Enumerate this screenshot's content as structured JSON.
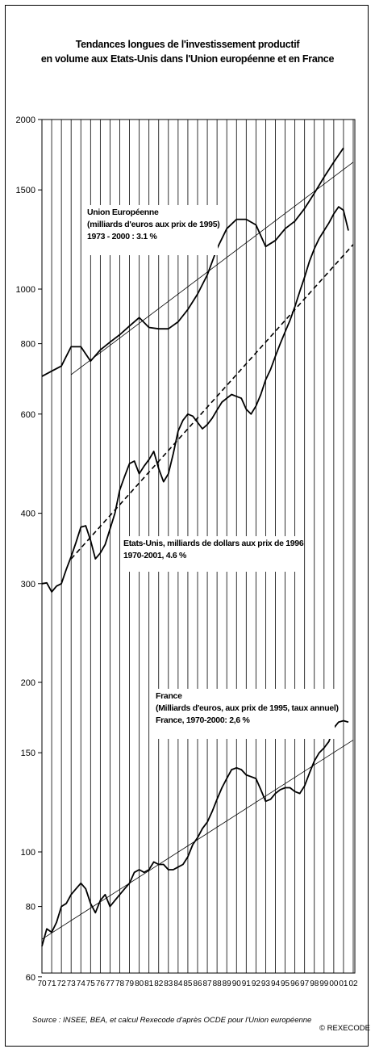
{
  "chart_data": {
    "type": "line",
    "title_line1": "Tendances longues de l'investissement productif",
    "title_line2": "en volume aux Etats-Unis dans l'Union européenne et en France",
    "yscale": "log",
    "grid": "vertical lines at each year",
    "x_tick_labels": [
      "70",
      "71",
      "72",
      "73",
      "74",
      "75",
      "76",
      "77",
      "78",
      "79",
      "80",
      "81",
      "82",
      "83",
      "84",
      "85",
      "86",
      "87",
      "88",
      "89",
      "90",
      "91",
      "92",
      "93",
      "94",
      "95",
      "96",
      "97",
      "98",
      "99",
      "00",
      "01",
      "02"
    ],
    "panels": [
      {
        "name": "top",
        "yticks": [
          "2000",
          "1500",
          "1000",
          "800",
          "600",
          "400",
          "300"
        ],
        "ylim": [
          280,
          2000
        ],
        "series": [
          {
            "name": "Union Européenne",
            "color": "#000000",
            "values": [
              [
                1970,
                700
              ],
              [
                1971,
                715
              ],
              [
                1972,
                730
              ],
              [
                1973,
                790
              ],
              [
                1974,
                790
              ],
              [
                1975,
                745
              ],
              [
                1976,
                780
              ],
              [
                1977,
                805
              ],
              [
                1978,
                830
              ],
              [
                1979,
                860
              ],
              [
                1980,
                890
              ],
              [
                1981,
                855
              ],
              [
                1982,
                850
              ],
              [
                1983,
                850
              ],
              [
                1984,
                875
              ],
              [
                1985,
                920
              ],
              [
                1986,
                980
              ],
              [
                1987,
                1060
              ],
              [
                1988,
                1180
              ],
              [
                1989,
                1280
              ],
              [
                1990,
                1330
              ],
              [
                1991,
                1330
              ],
              [
                1992,
                1300
              ],
              [
                1993,
                1190
              ],
              [
                1994,
                1220
              ],
              [
                1995,
                1280
              ],
              [
                1996,
                1320
              ],
              [
                1997,
                1390
              ],
              [
                1998,
                1480
              ],
              [
                1999,
                1580
              ],
              [
                2000,
                1680
              ],
              [
                2001,
                1780
              ]
            ]
          },
          {
            "name": "Tendance Union Européenne 1973-2000",
            "color": "#000000",
            "values": [
              [
                1973,
                705
              ],
              [
                2002,
                1680
              ]
            ]
          },
          {
            "name": "Etats-Unis",
            "color": "#000000",
            "values": [
              [
                1970,
                300
              ],
              [
                1970.5,
                301
              ],
              [
                1971,
                290
              ],
              [
                1971.5,
                297
              ],
              [
                1972,
                300
              ],
              [
                1972.5,
                318
              ],
              [
                1973,
                335
              ],
              [
                1973.5,
                355
              ],
              [
                1974,
                378
              ],
              [
                1974.5,
                380
              ],
              [
                1975,
                358
              ],
              [
                1975.5,
                332
              ],
              [
                1976,
                340
              ],
              [
                1976.5,
                352
              ],
              [
                1977,
                375
              ],
              [
                1977.5,
                400
              ],
              [
                1978,
                440
              ],
              [
                1978.5,
                465
              ],
              [
                1979,
                490
              ],
              [
                1979.5,
                495
              ],
              [
                1980,
                470
              ],
              [
                1980.5,
                485
              ],
              [
                1981,
                498
              ],
              [
                1981.5,
                515
              ],
              [
                1982,
                480
              ],
              [
                1982.5,
                455
              ],
              [
                1983,
                470
              ],
              [
                1983.5,
                510
              ],
              [
                1984,
                560
              ],
              [
                1984.5,
                585
              ],
              [
                1985,
                600
              ],
              [
                1985.5,
                595
              ],
              [
                1986,
                580
              ],
              [
                1986.5,
                565
              ],
              [
                1987,
                575
              ],
              [
                1987.5,
                590
              ],
              [
                1988,
                610
              ],
              [
                1988.5,
                630
              ],
              [
                1989,
                640
              ],
              [
                1989.5,
                650
              ],
              [
                1990,
                645
              ],
              [
                1990.5,
                640
              ],
              [
                1991,
                612
              ],
              [
                1991.5,
                600
              ],
              [
                1992,
                620
              ],
              [
                1992.5,
                650
              ],
              [
                1993,
                690
              ],
              [
                1993.5,
                720
              ],
              [
                1994,
                760
              ],
              [
                1994.5,
                800
              ],
              [
                1995,
                840
              ],
              [
                1995.5,
                880
              ],
              [
                1996,
                930
              ],
              [
                1996.5,
                990
              ],
              [
                1997,
                1050
              ],
              [
                1997.5,
                1120
              ],
              [
                1998,
                1180
              ],
              [
                1998.5,
                1230
              ],
              [
                1999,
                1270
              ],
              [
                1999.5,
                1310
              ],
              [
                2000,
                1360
              ],
              [
                2000.5,
                1400
              ],
              [
                2001,
                1380
              ],
              [
                2001.5,
                1270
              ]
            ]
          },
          {
            "name": "Tendance Etats-Unis 1970-2001",
            "color": "#000000",
            "dashed": true,
            "values": [
              [
                1973,
                332
              ],
              [
                2002,
                1200
              ]
            ]
          }
        ]
      },
      {
        "name": "bottom",
        "yticks": [
          "200",
          "150",
          "100",
          "80",
          "60"
        ],
        "ylim": [
          60,
          200
        ],
        "series": [
          {
            "name": "France",
            "color": "#000000",
            "values": [
              [
                1970,
                68
              ],
              [
                1970.5,
                73
              ],
              [
                1971,
                72
              ],
              [
                1971.5,
                75
              ],
              [
                1972,
                80
              ],
              [
                1972.5,
                81
              ],
              [
                1973,
                84
              ],
              [
                1973.5,
                86
              ],
              [
                1974,
                88
              ],
              [
                1974.5,
                86
              ],
              [
                1975,
                81
              ],
              [
                1975.5,
                78
              ],
              [
                1976,
                82
              ],
              [
                1976.5,
                84
              ],
              [
                1977,
                80
              ],
              [
                1977.5,
                82
              ],
              [
                1978,
                84
              ],
              [
                1978.5,
                86
              ],
              [
                1979,
                88
              ],
              [
                1979.5,
                92
              ],
              [
                1980,
                93
              ],
              [
                1980.5,
                92
              ],
              [
                1981,
                93
              ],
              [
                1981.5,
                96
              ],
              [
                1982,
                95
              ],
              [
                1982.5,
                95
              ],
              [
                1983,
                93
              ],
              [
                1983.5,
                93
              ],
              [
                1984,
                94
              ],
              [
                1984.5,
                95
              ],
              [
                1985,
                98
              ],
              [
                1985.5,
                103
              ],
              [
                1986,
                106
              ],
              [
                1986.5,
                110
              ],
              [
                1987,
                113
              ],
              [
                1987.5,
                118
              ],
              [
                1988,
                124
              ],
              [
                1988.5,
                130
              ],
              [
                1989,
                135
              ],
              [
                1989.5,
                140
              ],
              [
                1990,
                141
              ],
              [
                1990.5,
                140
              ],
              [
                1991,
                137
              ],
              [
                1991.5,
                136
              ],
              [
                1992,
                135
              ],
              [
                1992.5,
                129
              ],
              [
                1993,
                123
              ],
              [
                1993.5,
                124
              ],
              [
                1994,
                127
              ],
              [
                1994.5,
                129
              ],
              [
                1995,
                130
              ],
              [
                1995.5,
                130
              ],
              [
                1996,
                128
              ],
              [
                1996.5,
                127
              ],
              [
                1997,
                131
              ],
              [
                1997.5,
                138
              ],
              [
                1998,
                145
              ],
              [
                1998.5,
                150
              ],
              [
                1999,
                153
              ],
              [
                1999.5,
                157
              ],
              [
                2000,
                166
              ],
              [
                2000.5,
                170
              ],
              [
                2001,
                171
              ],
              [
                2001.5,
                170
              ]
            ]
          },
          {
            "name": "Tendance France 1970-2000",
            "color": "#000000",
            "values": [
              [
                1970,
                70
              ],
              [
                2002,
                158
              ]
            ]
          }
        ]
      }
    ],
    "annotations": {
      "ue": [
        "Union Européenne",
        "(milliards d'euros aux prix de 1995)",
        "1973 - 2000 : 3.1 %"
      ],
      "us": [
        "Etats-Unis, milliards de dollars aux prix de 1996",
        "1970-2001, 4.6 %"
      ],
      "fr": [
        "France",
        "(Milliards d'euros, aux prix de 1995, taux annuel)",
        "France, 1970-2000: 2,6 %"
      ]
    }
  },
  "footer": {
    "source": "Source : INSEE, BEA, et calcul Rexecode d'après OCDE pour l'Union européenne",
    "copyright": "© REXECODE"
  }
}
